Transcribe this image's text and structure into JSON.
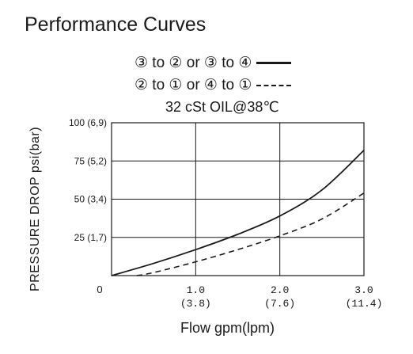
{
  "title": "Performance Curves",
  "legend": [
    {
      "label": "③ to ② or ③ to ④",
      "style": "solid"
    },
    {
      "label": "② to ① or ④ to ①",
      "style": "dashed"
    }
  ],
  "condition": "32 cSt OIL@38℃",
  "chart_data": {
    "type": "line",
    "xlabel": "Flow gpm(lpm)",
    "ylabel": "PRESSURE DROP psi(bar)",
    "xlim": [
      0,
      3.0
    ],
    "ylim": [
      0,
      100
    ],
    "grid": true,
    "legend_position": "top",
    "x_ticks": [
      {
        "value": 0,
        "label": "0",
        "sub": ""
      },
      {
        "value": 1.0,
        "label": "1.0",
        "sub": "(3.8)"
      },
      {
        "value": 2.0,
        "label": "2.0",
        "sub": "(7.6)"
      },
      {
        "value": 3.0,
        "label": "3.0",
        "sub": "(11.4)"
      }
    ],
    "y_ticks": [
      {
        "value": 25,
        "label": "25 (1,7)"
      },
      {
        "value": 50,
        "label": "50 (3,4)"
      },
      {
        "value": 75,
        "label": "75 (5,2)"
      },
      {
        "value": 100,
        "label": "100 (6,9)"
      }
    ],
    "series": [
      {
        "name": "③ to ② or ③ to ④",
        "style": "solid",
        "x": [
          0,
          0.5,
          1.0,
          1.5,
          2.0,
          2.5,
          3.0
        ],
        "y": [
          0,
          8,
          17,
          27,
          39,
          56,
          82
        ]
      },
      {
        "name": "② to ① or ④ to ①",
        "style": "dashed",
        "x": [
          0.3,
          0.5,
          1.0,
          1.5,
          2.0,
          2.5,
          3.0
        ],
        "y": [
          0,
          2,
          9,
          17,
          26,
          37,
          54
        ]
      }
    ]
  }
}
